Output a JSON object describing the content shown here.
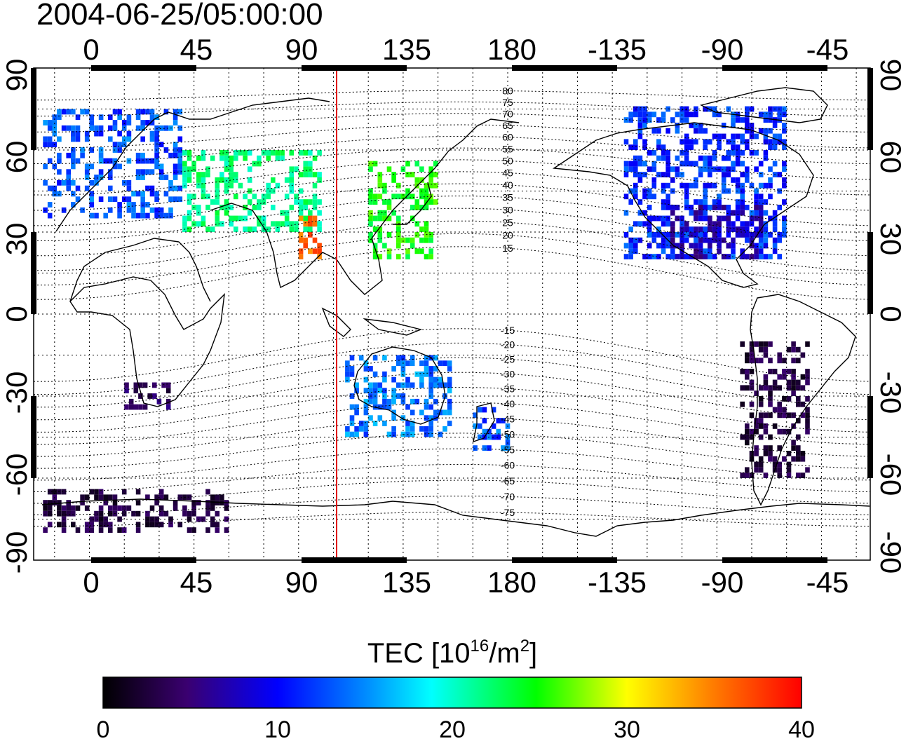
{
  "title": "2004-06-25/05:00:00",
  "map": {
    "lon_ticks": [
      "0",
      "45",
      "90",
      "135",
      "180",
      "-135",
      "-90",
      "-45"
    ],
    "lat_ticks": [
      "90",
      "60",
      "30",
      "0",
      "-30",
      "-60",
      "-90"
    ],
    "lon_tick_values": [
      0,
      45,
      90,
      135,
      180,
      225,
      270,
      315
    ],
    "lat_tick_values": [
      90,
      60,
      30,
      0,
      -30,
      -60,
      -90
    ],
    "lon_range": [
      -24,
      336
    ],
    "lat_range": [
      -90,
      90
    ],
    "grid_step_deg": 15,
    "subsolar_meridian_lon": 105,
    "meridian_color": "#e00000",
    "contour_labels": [
      "80",
      "75",
      "70",
      "65",
      "60",
      "55",
      "50",
      "45",
      "40",
      "35",
      "30",
      "25",
      "20",
      "15",
      "-15",
      "-20",
      "-25",
      "-30",
      "-35",
      "-40",
      "-45",
      "-50",
      "-55",
      "-60",
      "-65",
      "-70",
      "-75"
    ],
    "contour_values": [
      80,
      75,
      70,
      65,
      60,
      55,
      50,
      45,
      40,
      35,
      30,
      25,
      20,
      15,
      -15,
      -20,
      -25,
      -30,
      -35,
      -40,
      -45,
      -50,
      -55,
      -60,
      -65,
      -70,
      -75
    ]
  },
  "colorbar": {
    "title_main": "TEC  [10",
    "title_exp": "16",
    "title_mid": "/m",
    "title_exp2": "2",
    "title_end": "]",
    "ticks": [
      "0",
      "10",
      "20",
      "30",
      "40"
    ],
    "tick_values": [
      0,
      10,
      20,
      30,
      40
    ],
    "range": [
      0,
      40
    ],
    "colors": [
      "#000000",
      "#3a0070",
      "#0000ff",
      "#00ffff",
      "#00ff00",
      "#ffff00",
      "#ff8000",
      "#ff0000"
    ]
  },
  "chart_data": {
    "type": "heatmap",
    "title": "2004-06-25/05:00:00",
    "xlabel": "",
    "ylabel": "",
    "colorbar_label": "TEC [10^16/m^2]",
    "x_range_lon_deg": [
      -24,
      336
    ],
    "y_range_lat_deg": [
      -90,
      90
    ],
    "value_range": [
      0,
      40
    ],
    "regions": [
      {
        "lon": [
          -20,
          40
        ],
        "lat": [
          35,
          75
        ],
        "tec": 12
      },
      {
        "lon": [
          40,
          100
        ],
        "lat": [
          30,
          60
        ],
        "tec": 22
      },
      {
        "lon": [
          90,
          100
        ],
        "lat": [
          20,
          35
        ],
        "tec": 36
      },
      {
        "lon": [
          120,
          150
        ],
        "lat": [
          20,
          55
        ],
        "tec": 25
      },
      {
        "lon": [
          -130,
          -60
        ],
        "lat": [
          20,
          75
        ],
        "tec": 11
      },
      {
        "lon": [
          -110,
          -70
        ],
        "lat": [
          20,
          40
        ],
        "tec": 7
      },
      {
        "lon": [
          -80,
          -50
        ],
        "lat": [
          -60,
          -10
        ],
        "tec": 3
      },
      {
        "lon": [
          110,
          155
        ],
        "lat": [
          -45,
          -15
        ],
        "tec": 13
      },
      {
        "lon": [
          165,
          180
        ],
        "lat": [
          -50,
          -35
        ],
        "tec": 12
      },
      {
        "lon": [
          -20,
          60
        ],
        "lat": [
          -80,
          -65
        ],
        "tec": 3
      },
      {
        "lon": [
          15,
          35
        ],
        "lat": [
          -35,
          -25
        ],
        "tec": 4
      }
    ]
  }
}
